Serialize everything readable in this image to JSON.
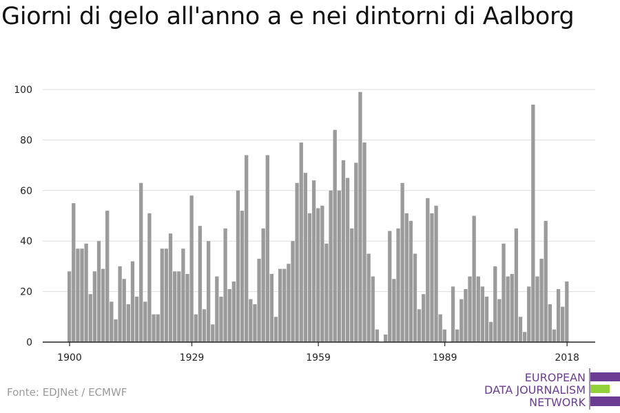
{
  "header": {
    "title": "Giorni di gelo all'anno a e nei dintorni di Aalborg"
  },
  "footer": {
    "source": "Fonte: EDJNet / ECMWF"
  },
  "logo": {
    "line1": "EUROPEAN",
    "line2": "DATA JOURNALISM",
    "line3": "NETWORK",
    "color_purple": "#6a3c93",
    "color_green": "#93d13a"
  },
  "colors": {
    "bar": "#9b9b9b",
    "grid": "#dddddd",
    "axis": "#222222"
  },
  "chart_data": {
    "type": "bar",
    "title": "Giorni di gelo all'anno a e nei dintorni di Aalborg",
    "xlabel": "",
    "ylabel": "",
    "ylim": [
      0,
      100
    ],
    "yticks": [
      0,
      20,
      40,
      60,
      80,
      100
    ],
    "xticks": [
      1900,
      1929,
      1959,
      1989,
      2018
    ],
    "grid": true,
    "x": [
      1900,
      1901,
      1902,
      1903,
      1904,
      1905,
      1906,
      1907,
      1908,
      1909,
      1910,
      1911,
      1912,
      1913,
      1914,
      1915,
      1916,
      1917,
      1918,
      1919,
      1920,
      1921,
      1922,
      1923,
      1924,
      1925,
      1926,
      1927,
      1928,
      1929,
      1930,
      1931,
      1932,
      1933,
      1934,
      1935,
      1936,
      1937,
      1938,
      1939,
      1940,
      1941,
      1942,
      1943,
      1944,
      1945,
      1946,
      1947,
      1948,
      1949,
      1950,
      1951,
      1952,
      1953,
      1954,
      1955,
      1956,
      1957,
      1958,
      1959,
      1960,
      1961,
      1962,
      1963,
      1964,
      1965,
      1966,
      1967,
      1968,
      1969,
      1970,
      1971,
      1972,
      1973,
      1974,
      1975,
      1976,
      1977,
      1978,
      1979,
      1980,
      1981,
      1982,
      1983,
      1984,
      1985,
      1986,
      1987,
      1988,
      1989,
      1990,
      1991,
      1992,
      1993,
      1994,
      1995,
      1996,
      1997,
      1998,
      1999,
      2000,
      2001,
      2002,
      2003,
      2004,
      2005,
      2006,
      2007,
      2008,
      2009,
      2010,
      2011,
      2012,
      2013,
      2014,
      2015,
      2016,
      2017,
      2018
    ],
    "values": [
      28,
      55,
      37,
      37,
      39,
      19,
      28,
      40,
      29,
      52,
      16,
      9,
      30,
      25,
      15,
      32,
      18,
      63,
      16,
      51,
      11,
      11,
      37,
      37,
      43,
      28,
      28,
      37,
      27,
      58,
      11,
      46,
      13,
      40,
      7,
      26,
      18,
      45,
      21,
      24,
      60,
      52,
      74,
      17,
      15,
      33,
      45,
      74,
      27,
      10,
      29,
      29,
      31,
      40,
      63,
      79,
      67,
      51,
      64,
      53,
      54,
      39,
      60,
      84,
      60,
      72,
      65,
      45,
      71,
      99,
      79,
      35,
      26,
      5,
      0,
      3,
      44,
      25,
      45,
      63,
      51,
      48,
      35,
      13,
      19,
      57,
      51,
      54,
      11,
      5,
      0,
      22,
      5,
      17,
      21,
      26,
      50,
      26,
      22,
      18,
      8,
      30,
      17,
      39,
      26,
      27,
      45,
      10,
      4,
      22,
      94,
      26,
      33,
      48,
      15,
      5,
      21,
      14,
      24
    ]
  }
}
